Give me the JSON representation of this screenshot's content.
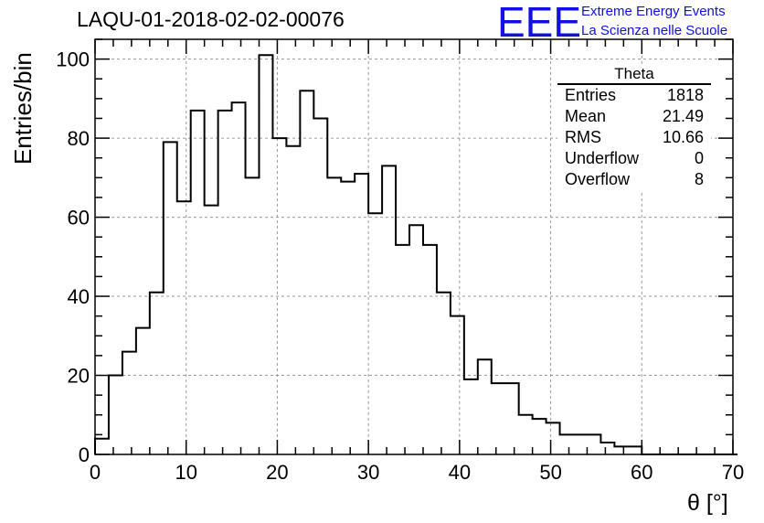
{
  "title": "LAQU-01-2018-02-02-00076",
  "logo": {
    "mark": "EEE",
    "line1": "Extreme Energy Events",
    "line2": "La Scienza nelle Scuole",
    "color": "#1010e0"
  },
  "stats": {
    "name": "Theta",
    "rows": [
      {
        "label": "Entries",
        "value": "1818"
      },
      {
        "label": "Mean",
        "value": "21.49"
      },
      {
        "label": "RMS",
        "value": "10.66"
      },
      {
        "label": "Underflow",
        "value": "0"
      },
      {
        "label": "Overflow",
        "value": "8"
      }
    ]
  },
  "chart_data": {
    "type": "bar",
    "style": "step-histogram",
    "title": "LAQU-01-2018-02-02-00076",
    "xlabel": "θ [°]",
    "ylabel": "Entries/bin",
    "xlim": [
      0,
      70
    ],
    "ylim": [
      0,
      105
    ],
    "bin_width": 1.5,
    "x_ticks": [
      0,
      10,
      20,
      30,
      40,
      50,
      60,
      70
    ],
    "y_ticks": [
      0,
      20,
      40,
      60,
      80,
      100
    ],
    "grid": true,
    "values": [
      4,
      20,
      26,
      32,
      41,
      79,
      64,
      87,
      63,
      87,
      89,
      70,
      101,
      80,
      78,
      92,
      85,
      70,
      69,
      71,
      61,
      73,
      53,
      58,
      53,
      41,
      35,
      19,
      24,
      18,
      18,
      10,
      9,
      8,
      5,
      5,
      5,
      3,
      2,
      2,
      0,
      0,
      0,
      0,
      0,
      0,
      0
    ]
  }
}
